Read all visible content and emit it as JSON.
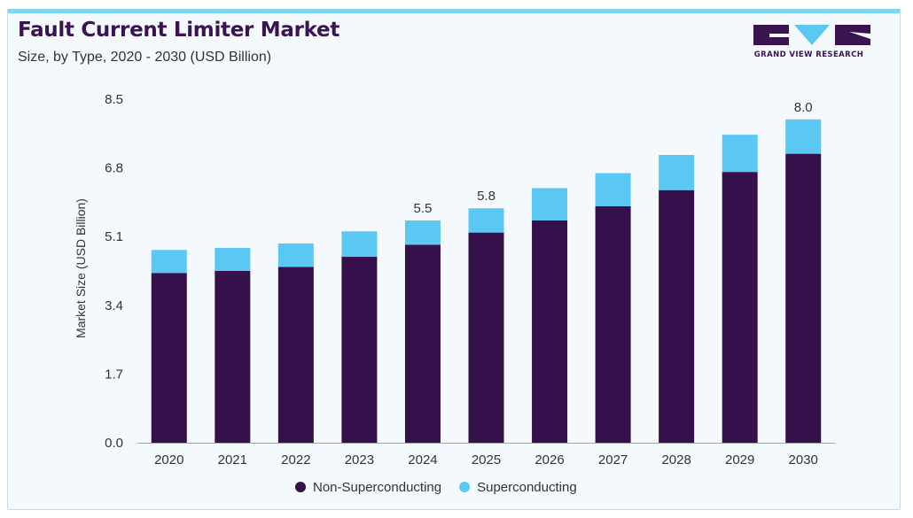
{
  "header": {
    "title": "Fault Current Limiter Market",
    "subtitle": "Size, by Type, 2020 - 2030 (USD Billion)"
  },
  "logo": {
    "text": "GRAND VIEW RESEARCH",
    "color": "#3a1450",
    "accent": "#5ac8f0"
  },
  "colors": {
    "non_superconducting": "#36104a",
    "superconducting": "#5bc8f3",
    "card_background": "#f3f9fc",
    "card_top_border": "#7fd4ef"
  },
  "chart_data": {
    "type": "bar",
    "stacked": true,
    "categories": [
      "2020",
      "2021",
      "2022",
      "2023",
      "2024",
      "2025",
      "2026",
      "2027",
      "2028",
      "2029",
      "2030"
    ],
    "series": [
      {
        "name": "Non-Superconducting",
        "color": "#36104a",
        "values": [
          4.2,
          4.25,
          4.35,
          4.6,
          4.9,
          5.2,
          5.5,
          5.85,
          6.25,
          6.7,
          7.15
        ]
      },
      {
        "name": "Superconducting",
        "color": "#5bc8f3",
        "values": [
          0.57,
          0.57,
          0.58,
          0.63,
          0.6,
          0.6,
          0.8,
          0.82,
          0.87,
          0.92,
          0.85
        ]
      }
    ],
    "data_labels": [
      "",
      "",
      "",
      "",
      "5.5",
      "5.8",
      "",
      "",
      "",
      "",
      "8.0"
    ],
    "ylabel": "Market Size (USD Billion)",
    "yticks": [
      "0.0",
      "1.7",
      "3.4",
      "5.1",
      "6.8",
      "8.5"
    ],
    "ylim": [
      0,
      8.5
    ],
    "grid": false,
    "legend_position": "bottom-center"
  }
}
